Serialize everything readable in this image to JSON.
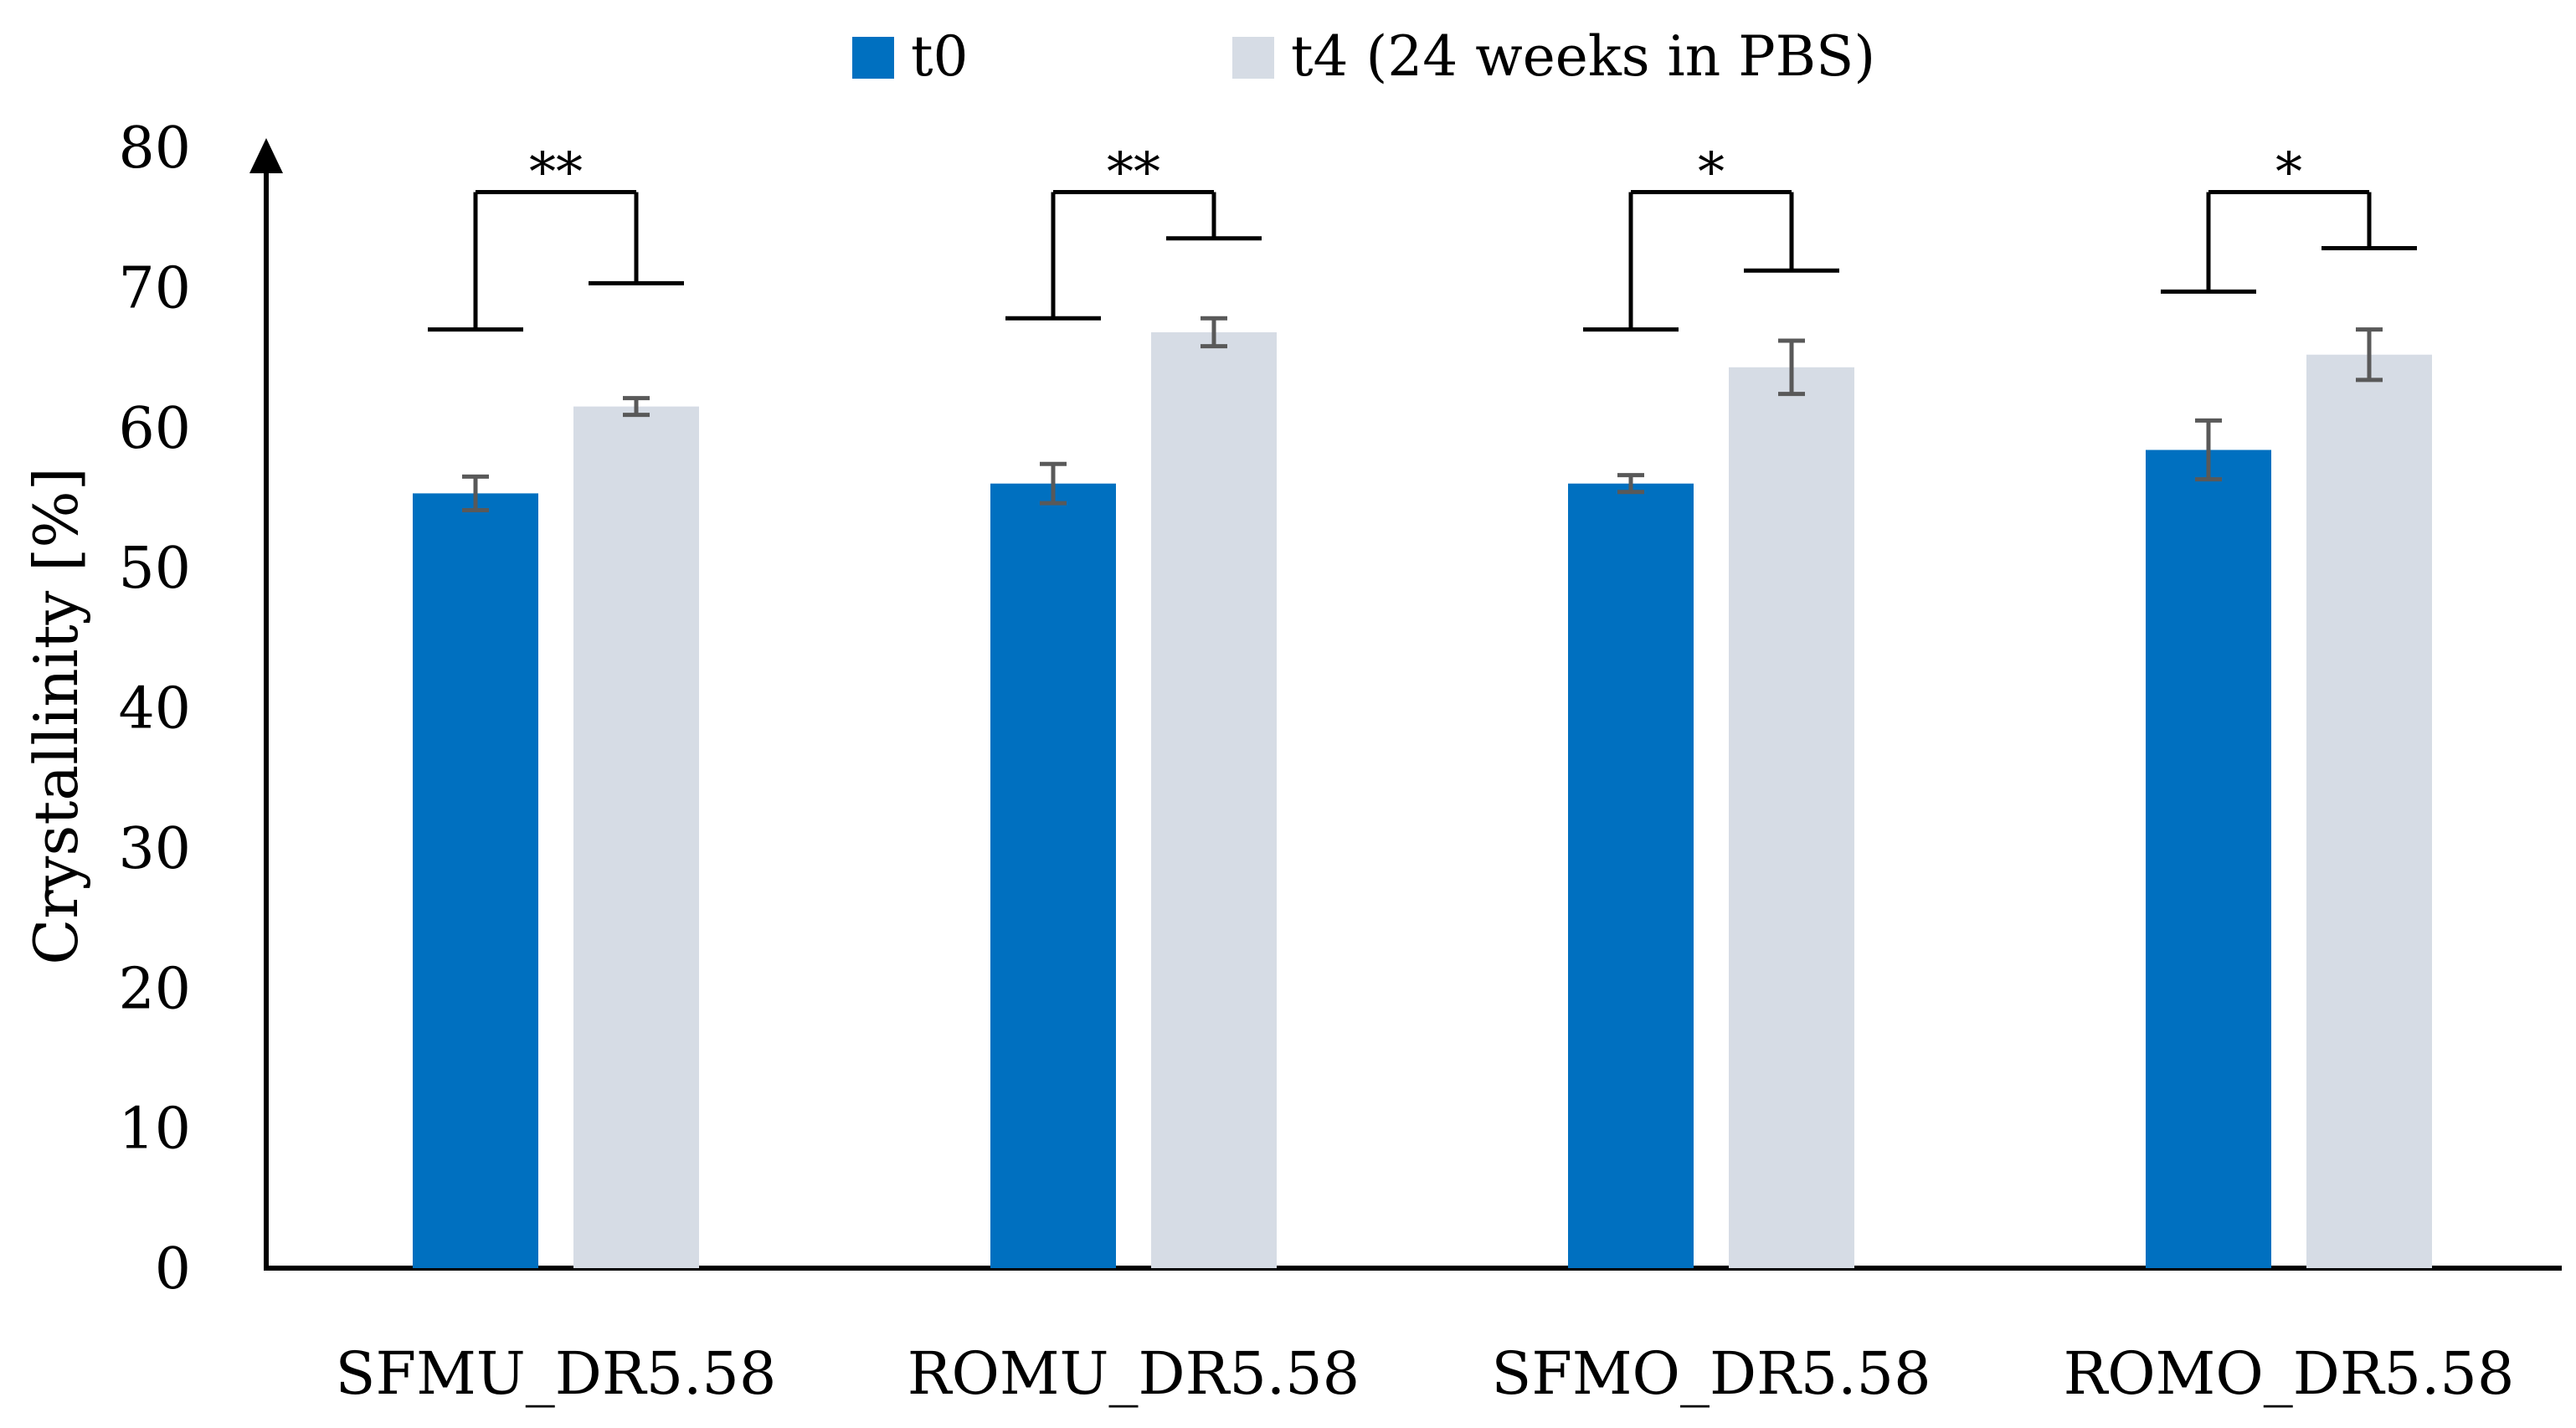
{
  "chart_data": {
    "type": "bar",
    "title": "",
    "xlabel": "",
    "ylabel": "Crystallinity [%]",
    "ylim": [
      0,
      80
    ],
    "yticks": [
      0,
      10,
      20,
      30,
      40,
      50,
      60,
      70,
      80
    ],
    "grid": false,
    "legend_position": "top-center",
    "categories": [
      "SFMU_DR5.58",
      "ROMU_DR5.58",
      "SFMO_DR5.58",
      "ROMO_DR5.58"
    ],
    "series": [
      {
        "name": "t0",
        "color": "#0070c0",
        "values": [
          55.3,
          56.0,
          56.0,
          58.4
        ],
        "errors": [
          1.2,
          1.4,
          0.6,
          2.1
        ]
      },
      {
        "name": "t4 (24 weeks in PBS)",
        "color": "#d6dce5",
        "values": [
          61.5,
          66.8,
          64.3,
          65.2
        ],
        "errors": [
          0.6,
          1.0,
          1.9,
          1.8
        ]
      }
    ],
    "significance": [
      {
        "category": "SFMU_DR5.58",
        "label": "**",
        "left_top": 67.0,
        "right_top": 70.3,
        "bar_top": 76.8
      },
      {
        "category": "ROMU_DR5.58",
        "label": "**",
        "left_top": 67.8,
        "right_top": 73.5,
        "bar_top": 76.8
      },
      {
        "category": "SFMO_DR5.58",
        "label": "*",
        "left_top": 67.0,
        "right_top": 71.2,
        "bar_top": 76.8
      },
      {
        "category": "ROMO_DR5.58",
        "label": "*",
        "left_top": 69.7,
        "right_top": 72.8,
        "bar_top": 76.8
      }
    ],
    "colors": {
      "axis": "#000000",
      "error_bar": "#595959",
      "bracket": "#000000"
    }
  }
}
